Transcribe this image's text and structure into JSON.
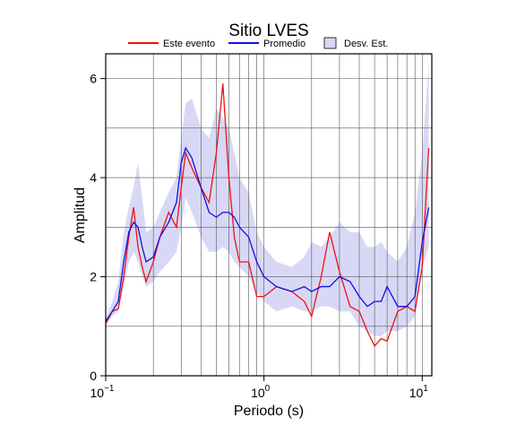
{
  "chart_data": {
    "type": "line",
    "title": "Sitio LVES",
    "xlabel": "Periodo (s)",
    "ylabel": "Amplitud",
    "xscale": "log",
    "xlim": [
      0.1,
      11.5
    ],
    "ylim": [
      0,
      6.5
    ],
    "xticks": [
      {
        "value": 0.1,
        "label": "10",
        "exponent": "−1"
      },
      {
        "value": 1,
        "label": "10",
        "exponent": "0"
      },
      {
        "value": 10,
        "label": "10",
        "exponent": "1"
      }
    ],
    "yticks": [
      0,
      2,
      4,
      6
    ],
    "xgrid": [
      0.2,
      0.3,
      0.4,
      0.5,
      0.6,
      0.7,
      0.8,
      0.9,
      1,
      2,
      3,
      4,
      5,
      6,
      7,
      8,
      9,
      10
    ],
    "ygrid": [
      1,
      2,
      3,
      4,
      5,
      6
    ],
    "x": [
      0.1,
      0.11,
      0.12,
      0.13,
      0.14,
      0.15,
      0.16,
      0.17,
      0.18,
      0.2,
      0.22,
      0.25,
      0.28,
      0.3,
      0.32,
      0.35,
      0.4,
      0.45,
      0.5,
      0.55,
      0.6,
      0.65,
      0.7,
      0.8,
      0.9,
      1.0,
      1.2,
      1.5,
      1.8,
      2.0,
      2.3,
      2.6,
      3.0,
      3.5,
      4.0,
      4.5,
      5.0,
      5.5,
      6.0,
      7.0,
      8.0,
      9.0,
      10.0,
      11.0
    ],
    "band": {
      "name": "Desv. Est.",
      "color": "#d8d8f6",
      "lower": [
        1.05,
        1.2,
        1.3,
        1.8,
        2.3,
        2.5,
        2.3,
        2.0,
        1.8,
        1.9,
        2.1,
        2.3,
        2.5,
        3.0,
        3.6,
        3.3,
        2.8,
        2.5,
        2.5,
        2.6,
        2.5,
        2.3,
        2.2,
        2.0,
        1.7,
        1.5,
        1.3,
        1.4,
        1.3,
        1.3,
        1.4,
        1.4,
        1.3,
        1.3,
        1.0,
        0.9,
        0.8,
        0.8,
        0.9,
        0.9,
        1.0,
        1.2,
        2.2,
        2.6
      ],
      "upper": [
        1.15,
        1.5,
        1.9,
        2.9,
        3.4,
        3.8,
        4.3,
        3.6,
        2.9,
        3.0,
        3.3,
        3.7,
        4.0,
        4.8,
        5.5,
        5.6,
        5.0,
        4.8,
        5.4,
        5.2,
        5.0,
        4.5,
        4.0,
        3.7,
        2.9,
        2.6,
        2.3,
        2.2,
        2.4,
        2.7,
        2.6,
        2.8,
        3.1,
        2.9,
        2.9,
        2.6,
        2.6,
        2.7,
        2.5,
        2.3,
        2.6,
        3.3,
        4.5,
        6.3
      ]
    },
    "series": [
      {
        "name": "Este evento",
        "color": "#ee1111",
        "values": [
          1.05,
          1.3,
          1.35,
          2.0,
          2.8,
          3.4,
          2.6,
          2.2,
          1.9,
          2.3,
          2.8,
          3.3,
          3.0,
          3.8,
          4.5,
          4.2,
          3.8,
          3.5,
          4.5,
          5.9,
          4.0,
          2.8,
          2.3,
          2.3,
          1.6,
          1.6,
          1.8,
          1.7,
          1.5,
          1.2,
          2.0,
          2.9,
          2.1,
          1.4,
          1.3,
          0.9,
          0.6,
          0.75,
          0.7,
          1.3,
          1.4,
          1.3,
          2.2,
          4.6
        ]
      },
      {
        "name": "Promedio",
        "color": "#1111dd",
        "values": [
          1.1,
          1.3,
          1.5,
          2.3,
          2.9,
          3.1,
          3.0,
          2.6,
          2.3,
          2.4,
          2.8,
          3.1,
          3.5,
          4.3,
          4.6,
          4.4,
          3.8,
          3.3,
          3.2,
          3.3,
          3.3,
          3.2,
          3.0,
          2.8,
          2.3,
          2.0,
          1.8,
          1.7,
          1.8,
          1.7,
          1.8,
          1.8,
          2.0,
          1.9,
          1.6,
          1.4,
          1.5,
          1.5,
          1.8,
          1.4,
          1.4,
          1.6,
          2.7,
          3.4
        ]
      }
    ]
  }
}
